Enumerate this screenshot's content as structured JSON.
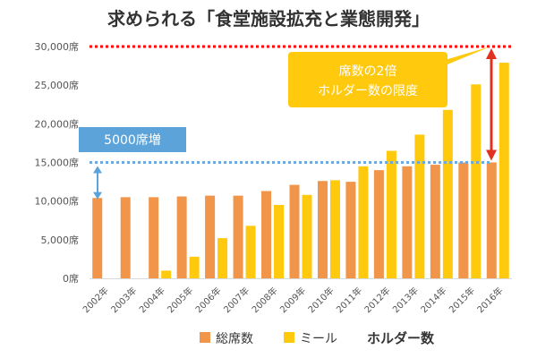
{
  "chart_data": {
    "type": "bar",
    "title": "求められる「食堂施設拡充と業態開発」",
    "categories": [
      "2002年",
      "2003年",
      "2004年",
      "2005年",
      "2006年",
      "2007年",
      "2008年",
      "2009年",
      "2010年",
      "2011年",
      "2012年",
      "2013年",
      "2014年",
      "2015年",
      "2016年"
    ],
    "series": [
      {
        "name": "総席数",
        "color": "#f0954a",
        "values": [
          10400,
          10500,
          10500,
          10600,
          10700,
          10700,
          11300,
          12100,
          12600,
          12500,
          14000,
          14500,
          14700,
          15000,
          15000
        ]
      },
      {
        "name": "ミール",
        "color": "#ffc90e",
        "values": [
          0,
          0,
          1000,
          2800,
          5200,
          6800,
          9500,
          10800,
          12700,
          14500,
          16500,
          18600,
          21800,
          25100,
          27900
        ]
      }
    ],
    "ylim": [
      0,
      30000
    ],
    "yticks": [
      "0席",
      "5,000席",
      "10,000席",
      "15,000席",
      "20,000席",
      "25,000席",
      "30,000席"
    ],
    "ytick_values": [
      0,
      5000,
      10000,
      15000,
      20000,
      25000,
      30000
    ],
    "grid": false,
    "legend_placement": "bottom",
    "legend_extra": "ホルダー数",
    "reference_lines": [
      {
        "value": 30000,
        "color": "#ff0000",
        "style": "dotted"
      },
      {
        "value": 15000,
        "color": "#6fa8dc",
        "style": "dotted"
      }
    ],
    "annotations": {
      "increase": "5000席増",
      "limit_line1": "席数の2倍",
      "limit_line2": "ホルダー数の限度"
    },
    "colors": {
      "increase_box": "#5ba3d9",
      "limit_box": "#ffc90e",
      "arrow": "#e03020",
      "blue_arrow": "#5ba3d9"
    }
  }
}
